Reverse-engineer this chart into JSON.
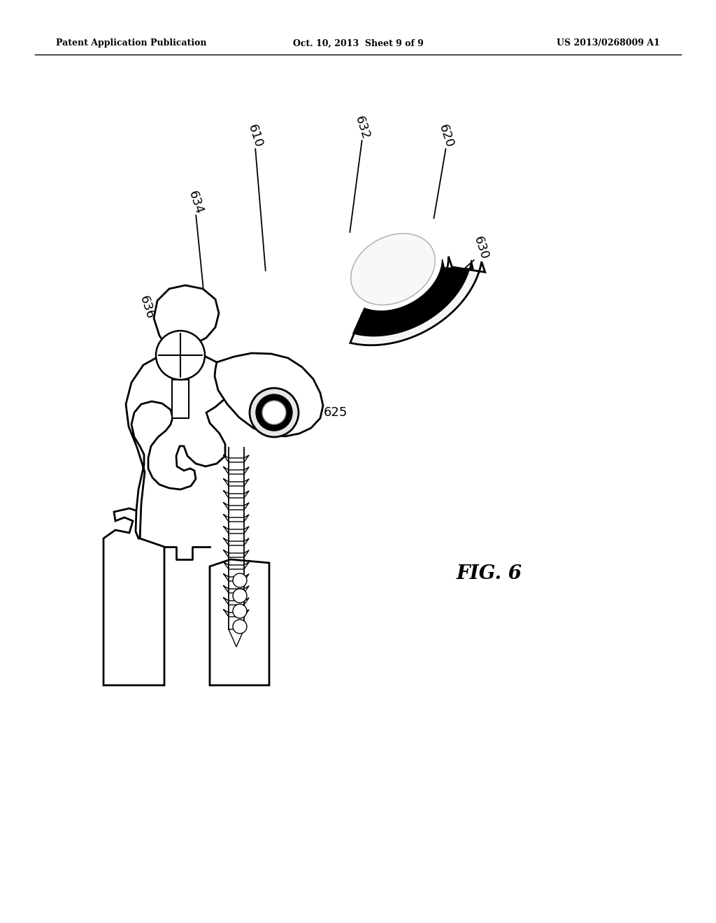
{
  "title_left": "Patent Application Publication",
  "title_center": "Oct. 10, 2013  Sheet 9 of 9",
  "title_right": "US 2013/0268009 A1",
  "fig_label": "FIG. 6",
  "background": "#ffffff",
  "line_color": "#000000"
}
